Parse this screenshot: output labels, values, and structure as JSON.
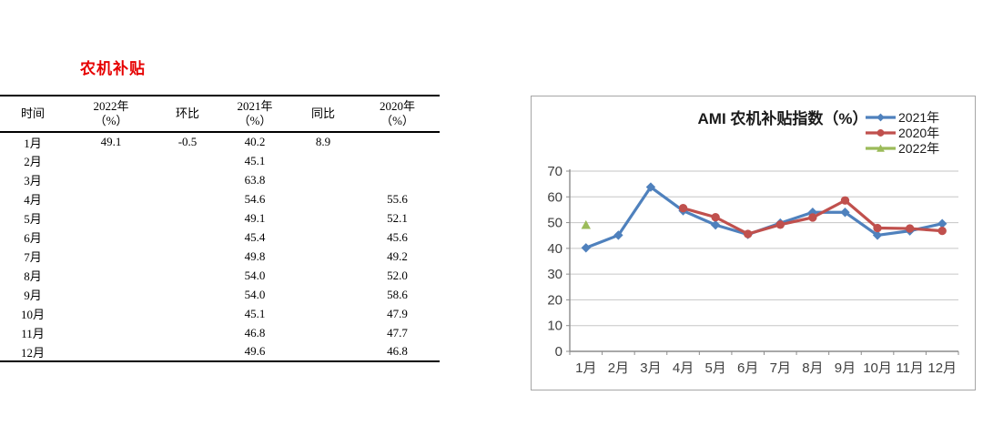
{
  "left_title": {
    "text": "农机补贴",
    "color": "#e60000"
  },
  "table": {
    "headers": [
      {
        "line1": "时间",
        "line2": ""
      },
      {
        "line1": "2022年",
        "line2": "（%）"
      },
      {
        "line1": "环比",
        "line2": ""
      },
      {
        "line1": "2021年",
        "line2": "（%）"
      },
      {
        "line1": "同比",
        "line2": ""
      },
      {
        "line1": "2020年",
        "line2": "（%）"
      }
    ],
    "rows": [
      [
        "1月",
        "49.1",
        "-0.5",
        "40.2",
        "8.9",
        ""
      ],
      [
        "2月",
        "",
        "",
        "45.1",
        "",
        ""
      ],
      [
        "3月",
        "",
        "",
        "63.8",
        "",
        ""
      ],
      [
        "4月",
        "",
        "",
        "54.6",
        "",
        "55.6"
      ],
      [
        "5月",
        "",
        "",
        "49.1",
        "",
        "52.1"
      ],
      [
        "6月",
        "",
        "",
        "45.4",
        "",
        "45.6"
      ],
      [
        "7月",
        "",
        "",
        "49.8",
        "",
        "49.2"
      ],
      [
        "8月",
        "",
        "",
        "54.0",
        "",
        "52.0"
      ],
      [
        "9月",
        "",
        "",
        "54.0",
        "",
        "58.6"
      ],
      [
        "10月",
        "",
        "",
        "45.1",
        "",
        "47.9"
      ],
      [
        "11月",
        "",
        "",
        "46.8",
        "",
        "47.7"
      ],
      [
        "12月",
        "",
        "",
        "49.6",
        "",
        "46.8"
      ]
    ]
  },
  "chart_data": {
    "type": "line",
    "title": "AMI 农机补贴指数（%）",
    "categories": [
      "1月",
      "2月",
      "3月",
      "4月",
      "5月",
      "6月",
      "7月",
      "8月",
      "9月",
      "10月",
      "11月",
      "12月"
    ],
    "series": [
      {
        "name": "2021年",
        "color": "#4F81BD",
        "marker": "diamond",
        "values": [
          40.2,
          45.1,
          63.8,
          54.6,
          49.1,
          45.4,
          49.8,
          54.0,
          54.0,
          45.1,
          46.8,
          49.6
        ]
      },
      {
        "name": "2020年",
        "color": "#C0504D",
        "marker": "circle",
        "values": [
          null,
          null,
          null,
          55.6,
          52.1,
          45.6,
          49.2,
          52.0,
          58.6,
          47.9,
          47.7,
          46.8
        ]
      },
      {
        "name": "2022年",
        "color": "#9BBB59",
        "marker": "triangle",
        "values": [
          49.1,
          null,
          null,
          null,
          null,
          null,
          null,
          null,
          null,
          null,
          null,
          null
        ]
      }
    ],
    "ylim": [
      0,
      70
    ],
    "ytick_step": 10,
    "grid": true,
    "legend_position": "top-right",
    "colors": {
      "grid": "#c6c6c6",
      "axis": "#8c8c8c",
      "axis_text": "#404040",
      "title_text": "#1a1a1a",
      "legend_text": "#1a1a1a",
      "border": "#a6a6a6"
    }
  }
}
